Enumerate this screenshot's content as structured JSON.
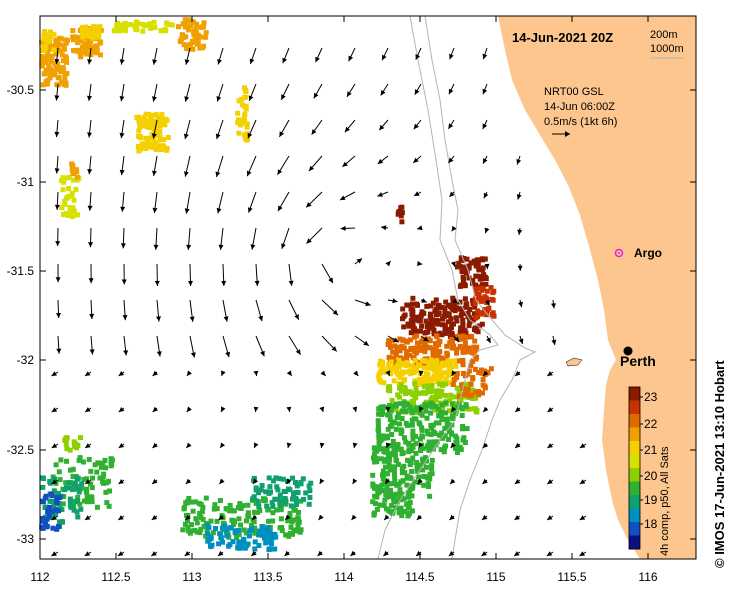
{
  "header": {
    "date_label": "14-Jun-2021 20Z",
    "contour_200": "200m",
    "contour_1000": "1000m"
  },
  "current_info": {
    "line1": "NRT00 GSL",
    "line2": "14-Jun 06:00Z",
    "line3": "0.5m/s (1kt 6h)"
  },
  "places": {
    "argo": "Argo",
    "perth": "Perth"
  },
  "colorbar": {
    "title": "4h comp, p50, All Sats",
    "ticks": [
      "23",
      "22",
      "21",
      "20",
      "19",
      "18"
    ],
    "colors": [
      "#8b1a00",
      "#c83200",
      "#e06a00",
      "#f0a000",
      "#f5d000",
      "#d8e000",
      "#8cd000",
      "#30b030",
      "#10a070",
      "#0090c0",
      "#1050c0",
      "#0a1080"
    ]
  },
  "axes": {
    "x_ticks": [
      "112",
      "112.5",
      "113",
      "113.5",
      "114",
      "114.5",
      "115",
      "115.5",
      "116"
    ],
    "y_ticks": [
      "-30.5",
      "-31",
      "-31.5",
      "-32",
      "-32.5",
      "-33"
    ]
  },
  "credit": "© IMOS 17-Jun-2021 13:10 Hobart",
  "colors": {
    "land": "#fcc68e",
    "ocean": "#ffffff",
    "contour": "#b4b4b4",
    "argo": "#e020e0"
  }
}
